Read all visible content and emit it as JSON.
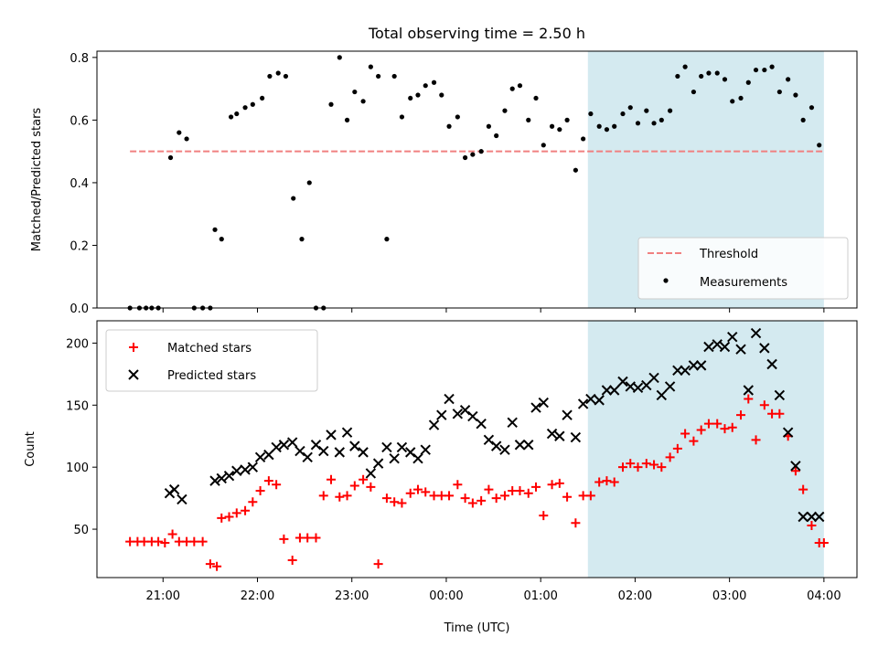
{
  "chart_data": [
    {
      "type": "scatter",
      "title": "Total observing time = 2.50 h",
      "xlabel": "",
      "ylabel": "Matched/Predicted stars",
      "xlim": [
        20.3,
        28.35
      ],
      "ylim": [
        0,
        0.82
      ],
      "yticks": [
        0.0,
        0.2,
        0.4,
        0.6,
        0.8
      ],
      "ytick_labels": [
        "0.0",
        "0.2",
        "0.4",
        "0.6",
        "0.8"
      ],
      "xticks": [
        21,
        22,
        23,
        24,
        25,
        26,
        27,
        28
      ],
      "highlight_span": {
        "from": 25.5,
        "to": 28.0,
        "color": "#d4eaf0"
      },
      "threshold": {
        "name": "Threshold",
        "y": 0.5,
        "from": 20.65,
        "to": 28.0,
        "color": "#f08080"
      },
      "legend": {
        "position": "bottom-right",
        "entries": [
          "Threshold",
          "Measurements"
        ]
      },
      "series": [
        {
          "name": "Measurements",
          "color": "#000000",
          "x": [
            20.65,
            20.75,
            20.82,
            20.88,
            20.95,
            21.08,
            21.17,
            21.25,
            21.33,
            21.42,
            21.5,
            21.55,
            21.62,
            21.72,
            21.78,
            21.87,
            21.95,
            22.05,
            22.13,
            22.22,
            22.3,
            22.38,
            22.47,
            22.55,
            22.62,
            22.7,
            22.78,
            22.87,
            22.95,
            23.03,
            23.12,
            23.2,
            23.28,
            23.37,
            23.45,
            23.53,
            23.62,
            23.7,
            23.78,
            23.87,
            23.95,
            24.03,
            24.12,
            24.2,
            24.28,
            24.37,
            24.45,
            24.53,
            24.62,
            24.7,
            24.78,
            24.87,
            24.95,
            25.03,
            25.12,
            25.2,
            25.28,
            25.37,
            25.45,
            25.53,
            25.62,
            25.7,
            25.78,
            25.87,
            25.95,
            26.03,
            26.12,
            26.2,
            26.28,
            26.37,
            26.45,
            26.53,
            26.62,
            26.7,
            26.78,
            26.87,
            26.95,
            27.03,
            27.12,
            27.2,
            27.28,
            27.37,
            27.45,
            27.53,
            27.62,
            27.7,
            27.78,
            27.87,
            27.95
          ],
          "y": [
            0,
            0,
            0,
            0,
            0,
            0.48,
            0.56,
            0.54,
            0,
            0,
            0,
            0.25,
            0.22,
            0.61,
            0.62,
            0.64,
            0.65,
            0.67,
            0.74,
            0.75,
            0.74,
            0.35,
            0.22,
            0.4,
            0,
            0,
            0.65,
            0.8,
            0.6,
            0.69,
            0.66,
            0.77,
            0.74,
            0.22,
            0.74,
            0.61,
            0.67,
            0.68,
            0.71,
            0.72,
            0.68,
            0.58,
            0.61,
            0.48,
            0.49,
            0.5,
            0.58,
            0.55,
            0.63,
            0.7,
            0.71,
            0.6,
            0.67,
            0.52,
            0.58,
            0.57,
            0.6,
            0.44,
            0.54,
            0.62,
            0.58,
            0.57,
            0.58,
            0.62,
            0.64,
            0.59,
            0.63,
            0.59,
            0.6,
            0.63,
            0.74,
            0.77,
            0.69,
            0.74,
            0.75,
            0.75,
            0.73,
            0.66,
            0.67,
            0.72,
            0.76,
            0.76,
            0.77,
            0.69,
            0.73,
            0.68,
            0.6,
            0.64,
            0.52
          ]
        }
      ]
    },
    {
      "type": "scatter",
      "title": "",
      "xlabel": "Time (UTC)",
      "ylabel": "Count",
      "xlim": [
        20.3,
        28.35
      ],
      "ylim": [
        11,
        218
      ],
      "yticks": [
        50,
        100,
        150,
        200
      ],
      "ytick_labels": [
        "50",
        "100",
        "150",
        "200"
      ],
      "xticks": [
        21,
        22,
        23,
        24,
        25,
        26,
        27,
        28
      ],
      "xtick_labels": [
        "21:00",
        "22:00",
        "23:00",
        "00:00",
        "01:00",
        "02:00",
        "03:00",
        "04:00"
      ],
      "highlight_span": {
        "from": 25.5,
        "to": 28.0,
        "color": "#d4eaf0"
      },
      "legend": {
        "position": "top-left",
        "entries": [
          "Matched stars",
          "Predicted stars"
        ]
      },
      "series": [
        {
          "name": "Matched stars",
          "marker": "plus",
          "color": "#ff0000",
          "x": [
            20.65,
            20.73,
            20.8,
            20.88,
            20.95,
            21.02,
            21.1,
            21.17,
            21.25,
            21.33,
            21.42,
            21.5,
            21.57,
            21.62,
            21.7,
            21.78,
            21.87,
            21.95,
            22.03,
            22.12,
            22.2,
            22.28,
            22.37,
            22.45,
            22.53,
            22.62,
            22.7,
            22.78,
            22.87,
            22.95,
            23.03,
            23.12,
            23.2,
            23.28,
            23.37,
            23.45,
            23.53,
            23.62,
            23.7,
            23.78,
            23.87,
            23.95,
            24.03,
            24.12,
            24.2,
            24.28,
            24.37,
            24.45,
            24.53,
            24.62,
            24.7,
            24.78,
            24.87,
            24.95,
            25.03,
            25.12,
            25.2,
            25.28,
            25.37,
            25.45,
            25.53,
            25.62,
            25.7,
            25.78,
            25.87,
            25.95,
            26.03,
            26.12,
            26.2,
            26.28,
            26.37,
            26.45,
            26.53,
            26.62,
            26.7,
            26.78,
            26.87,
            26.95,
            27.03,
            27.12,
            27.2,
            27.28,
            27.37,
            27.45,
            27.53,
            27.62,
            27.7,
            27.78,
            27.87,
            27.95,
            28.0
          ],
          "y": [
            40,
            40,
            40,
            40,
            40,
            39,
            46,
            40,
            40,
            40,
            40,
            22,
            20,
            59,
            60,
            63,
            65,
            72,
            81,
            89,
            86,
            42,
            25,
            43,
            43,
            43,
            77,
            90,
            76,
            77,
            85,
            90,
            84,
            22,
            75,
            72,
            71,
            79,
            82,
            80,
            77,
            77,
            77,
            86,
            75,
            71,
            73,
            82,
            75,
            77,
            81,
            81,
            79,
            84,
            61,
            86,
            87,
            76,
            55,
            77,
            77,
            88,
            89,
            88,
            100,
            103,
            100,
            103,
            102,
            100,
            108,
            115,
            127,
            121,
            130,
            135,
            135,
            131,
            132,
            142,
            155,
            122,
            150,
            143,
            143,
            125,
            97,
            82,
            53,
            39,
            39
          ]
        },
        {
          "name": "Predicted stars",
          "marker": "x",
          "color": "#000000",
          "x": [
            21.07,
            21.12,
            21.2,
            21.55,
            21.62,
            21.7,
            21.78,
            21.87,
            21.95,
            22.03,
            22.12,
            22.2,
            22.28,
            22.37,
            22.45,
            22.53,
            22.62,
            22.7,
            22.78,
            22.87,
            22.95,
            23.03,
            23.12,
            23.2,
            23.28,
            23.37,
            23.45,
            23.53,
            23.62,
            23.7,
            23.78,
            23.87,
            23.95,
            24.03,
            24.12,
            24.2,
            24.28,
            24.37,
            24.45,
            24.53,
            24.62,
            24.7,
            24.78,
            24.87,
            24.95,
            25.03,
            25.12,
            25.2,
            25.28,
            25.37,
            25.45,
            25.53,
            25.62,
            25.7,
            25.78,
            25.87,
            25.95,
            26.03,
            26.12,
            26.2,
            26.28,
            26.37,
            26.45,
            26.53,
            26.62,
            26.7,
            26.78,
            26.87,
            26.95,
            27.03,
            27.12,
            27.2,
            27.28,
            27.37,
            27.45,
            27.53,
            27.62,
            27.7,
            27.78,
            27.87,
            27.95
          ],
          "y": [
            79,
            82,
            74,
            89,
            91,
            93,
            97,
            98,
            100,
            108,
            110,
            116,
            118,
            120,
            113,
            108,
            118,
            113,
            126,
            112,
            128,
            117,
            112,
            95,
            103,
            116,
            107,
            116,
            112,
            107,
            114,
            134,
            142,
            155,
            143,
            146,
            141,
            135,
            122,
            117,
            114,
            136,
            118,
            118,
            148,
            152,
            127,
            125,
            142,
            124,
            151,
            155,
            154,
            162,
            162,
            169,
            165,
            164,
            166,
            172,
            158,
            165,
            178,
            178,
            182,
            182,
            197,
            199,
            197,
            205,
            195,
            162,
            208,
            196,
            183,
            158,
            128,
            101,
            60,
            60,
            60
          ]
        }
      ]
    }
  ]
}
